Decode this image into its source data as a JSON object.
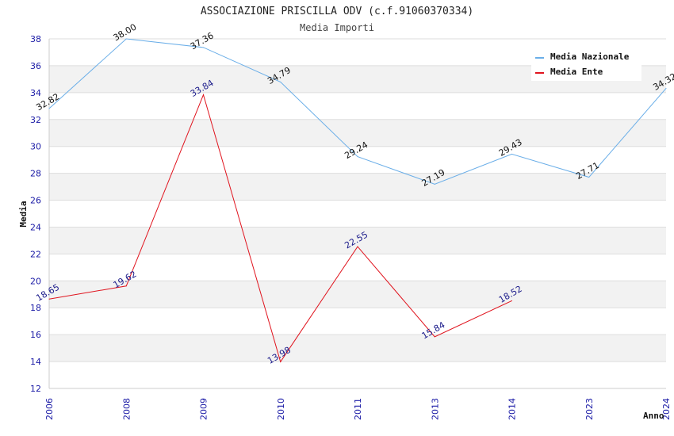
{
  "chart_data": {
    "type": "line",
    "title": "ASSOCIAZIONE PRISCILLA ODV (c.f.91060370334)",
    "subtitle": "Media Importi",
    "xlabel": "Anno",
    "ylabel": "Media",
    "ylim": [
      12,
      38
    ],
    "yticks": [
      "12",
      "14",
      "16",
      "18",
      "20",
      "22",
      "24",
      "26",
      "28",
      "30",
      "32",
      "34",
      "36",
      "38"
    ],
    "categories": [
      "2006",
      "2008",
      "2009",
      "2010",
      "2011",
      "2013",
      "2014",
      "2023",
      "2024"
    ],
    "grid": true,
    "legend_position": "top-right",
    "series": [
      {
        "name": "Media Nazionale",
        "color": "#6aaee8",
        "values": [
          32.82,
          38.0,
          37.36,
          34.79,
          29.24,
          27.19,
          29.43,
          27.71,
          34.32
        ],
        "labels": [
          "32.82",
          "38.00",
          "37.36",
          "34.79",
          "29.24",
          "27.19",
          "29.43",
          "27.71",
          "34.32"
        ]
      },
      {
        "name": "Media Ente",
        "color": "#e0141e",
        "values": [
          18.65,
          19.62,
          33.84,
          13.98,
          22.55,
          15.84,
          18.52,
          null,
          null
        ],
        "labels": [
          "18.65",
          "19.62",
          "33.84",
          "13.98",
          "22.55",
          "15.84",
          "18.52",
          null,
          null
        ]
      }
    ]
  }
}
